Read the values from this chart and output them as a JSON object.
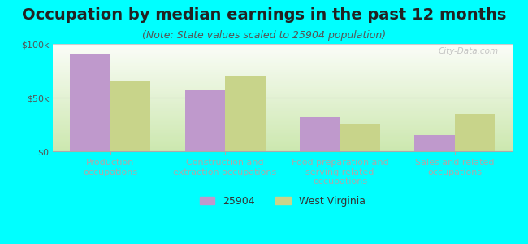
{
  "title": "Occupation by median earnings in the past 12 months",
  "subtitle": "(Note: State values scaled to 25904 population)",
  "categories": [
    "Production\noccupations",
    "Construction and\nextraction occupations",
    "Food preparation and\nserving related\noccupations",
    "Sales and related\noccupations"
  ],
  "values_25904": [
    90000,
    57000,
    32000,
    15000
  ],
  "values_wv": [
    65000,
    70000,
    25000,
    35000
  ],
  "bar_color_25904": "#bf99cc",
  "bar_color_wv": "#c8d48a",
  "ylim": [
    0,
    100000
  ],
  "yticks": [
    0,
    50000,
    100000
  ],
  "ytick_labels": [
    "$0",
    "$50k",
    "$100k"
  ],
  "legend_25904": "25904",
  "legend_wv": "West Virginia",
  "background_color": "#00ffff",
  "watermark": "City-Data.com",
  "bar_width": 0.35,
  "title_fontsize": 14,
  "subtitle_fontsize": 9,
  "tick_label_fontsize": 8,
  "axis_label_fontsize": 8
}
